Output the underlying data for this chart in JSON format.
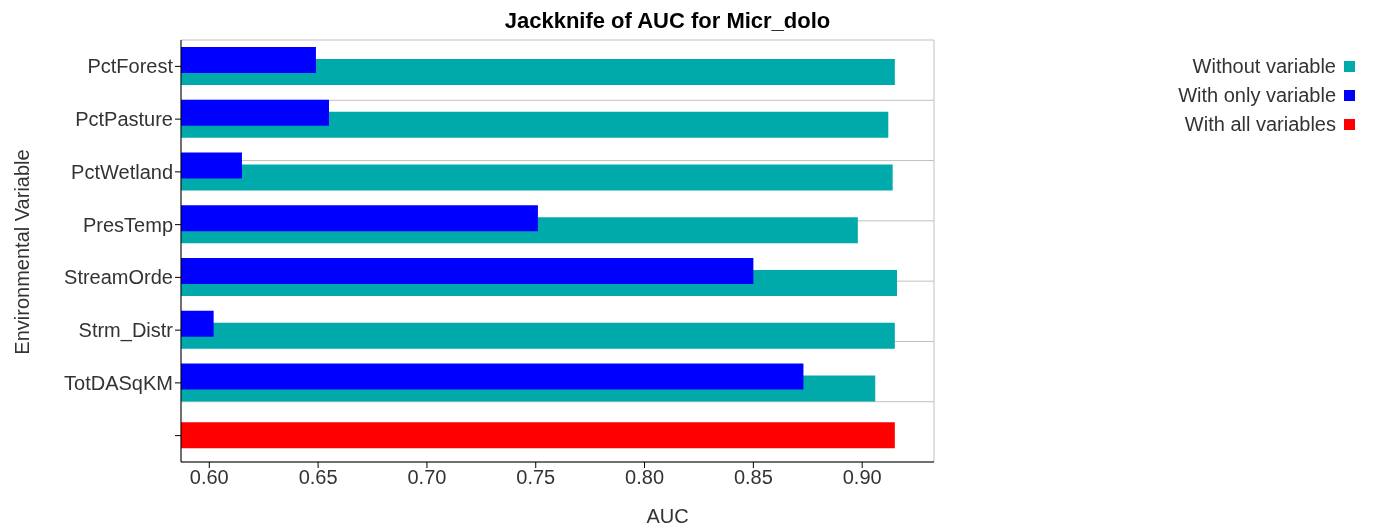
{
  "chart_data": {
    "type": "bar",
    "orientation": "horizontal",
    "title": "Jackknife of AUC for Micr_dolo",
    "xlabel": "AUC",
    "ylabel": "Environmental Variable",
    "categories": [
      "PctForest",
      "PctPasture",
      "PctWetland",
      "PresTemp",
      "StreamOrde",
      "Strm_Distr",
      "TotDASqKM",
      null
    ],
    "series": [
      {
        "name": "Without variable",
        "color": "#00aaaa",
        "values": [
          0.915,
          0.912,
          0.914,
          0.898,
          0.916,
          0.915,
          0.906,
          null
        ]
      },
      {
        "name": "With only variable",
        "color": "#0000ff",
        "values": [
          0.649,
          0.655,
          0.615,
          0.751,
          0.85,
          0.602,
          0.873,
          null
        ]
      },
      {
        "name": "With all variables",
        "color": "#ff0000",
        "values": [
          null,
          null,
          null,
          null,
          null,
          null,
          null,
          0.915
        ]
      }
    ],
    "xlim": [
      0.587,
      0.933
    ],
    "xticks": [
      {
        "value": 0.6,
        "label": "0.60"
      },
      {
        "value": 0.65,
        "label": "0.65"
      },
      {
        "value": 0.7,
        "label": "0.70"
      },
      {
        "value": 0.75,
        "label": "0.75"
      },
      {
        "value": 0.8,
        "label": "0.80"
      },
      {
        "value": 0.85,
        "label": "0.85"
      },
      {
        "value": 0.9,
        "label": "0.90"
      }
    ],
    "grid": true,
    "legend": "top right"
  }
}
